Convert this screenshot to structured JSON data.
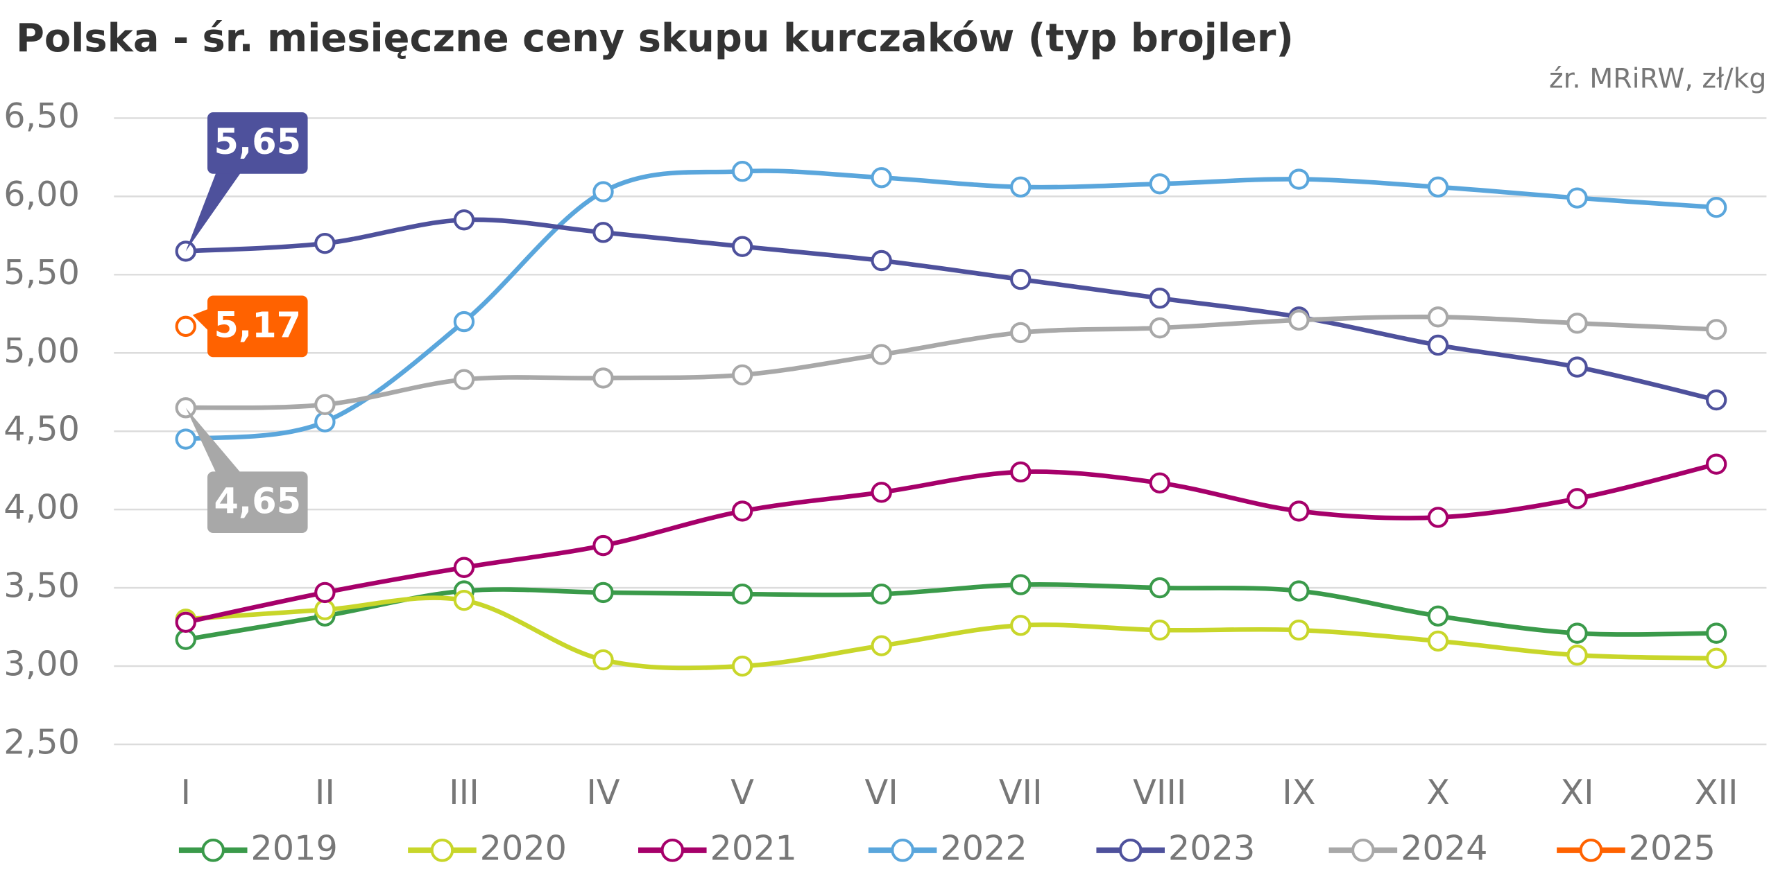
{
  "chart_data": {
    "type": "line",
    "title": "Polska - śr. miesięczne ceny skupu kurczaków (typ brojler)",
    "subtitle": "źr. MRiRW, zł/kg",
    "categories": [
      "I",
      "II",
      "III",
      "IV",
      "V",
      "VI",
      "VII",
      "VIII",
      "IX",
      "X",
      "XI",
      "XII"
    ],
    "ylim": [
      2.5,
      6.5
    ],
    "yticks": [
      {
        "value": 2.5,
        "label": "2,50"
      },
      {
        "value": 3,
        "label": "3,00"
      },
      {
        "value": 3.5,
        "label": "3,50"
      },
      {
        "value": 4,
        "label": "4,00"
      },
      {
        "value": 4.5,
        "label": "4,50"
      },
      {
        "value": 5,
        "label": "5,00"
      },
      {
        "value": 5.5,
        "label": "5,50"
      },
      {
        "value": 6,
        "label": "6,00"
      },
      {
        "value": 6.5,
        "label": "6,50"
      }
    ],
    "grid": true,
    "legend": "bottom",
    "series": [
      {
        "name": "2019",
        "color": "#3a9a4a",
        "values": [
          3.17,
          3.32,
          3.48,
          3.47,
          3.46,
          3.46,
          3.52,
          3.5,
          3.48,
          3.32,
          3.21,
          3.21
        ]
      },
      {
        "name": "2020",
        "color": "#c8d62a",
        "values": [
          3.3,
          3.36,
          3.42,
          3.04,
          3.0,
          3.13,
          3.26,
          3.23,
          3.23,
          3.16,
          3.07,
          3.05
        ]
      },
      {
        "name": "2021",
        "color": "#a6006a",
        "values": [
          3.28,
          3.47,
          3.63,
          3.77,
          3.99,
          4.11,
          4.24,
          4.17,
          3.99,
          3.95,
          4.07,
          4.29
        ]
      },
      {
        "name": "2022",
        "color": "#5aa6dc",
        "values": [
          4.45,
          4.56,
          5.2,
          6.03,
          6.16,
          6.12,
          6.06,
          6.08,
          6.11,
          6.06,
          5.99,
          5.93
        ]
      },
      {
        "name": "2023",
        "color": "#4e519c",
        "values": [
          5.65,
          5.7,
          5.85,
          5.77,
          5.68,
          5.59,
          5.47,
          5.35,
          5.23,
          5.05,
          4.91,
          4.7
        ],
        "value_labels": [
          "5,65",
          null,
          null,
          null,
          null,
          null,
          null,
          null,
          null,
          null,
          null,
          null
        ]
      },
      {
        "name": "2024",
        "color": "#a8a8a8",
        "values": [
          4.65,
          4.67,
          4.83,
          4.84,
          4.86,
          4.99,
          5.13,
          5.16,
          5.21,
          5.23,
          5.19,
          5.15
        ],
        "value_labels": [
          "4,65",
          null,
          null,
          null,
          null,
          null,
          null,
          null,
          null,
          null,
          null,
          null
        ]
      },
      {
        "name": "2025",
        "color": "#ff6200",
        "values": [
          5.17,
          null,
          null,
          null,
          null,
          null,
          null,
          null,
          null,
          null,
          null,
          null
        ],
        "value_labels": [
          "5,17",
          null,
          null,
          null,
          null,
          null,
          null,
          null,
          null,
          null,
          null,
          null
        ]
      }
    ]
  }
}
